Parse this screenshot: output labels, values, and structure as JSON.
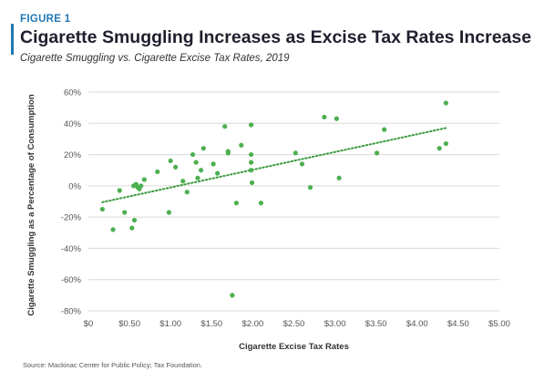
{
  "header": {
    "figure_label": "FIGURE 1",
    "title": "Cigarette Smuggling Increases as Excise Tax Rates Increase",
    "subtitle": "Cigarette Smuggling vs. Cigarette Excise Tax Rates, 2019"
  },
  "footer": {
    "source": "Source: Mackinac Center for Public Policy; Tax Foundation."
  },
  "colors": {
    "accent": "#1f78b4",
    "points": "#4caf50",
    "trendline": "#3d9a40",
    "grid": "#d9d9d9"
  },
  "chart_data": {
    "type": "scatter",
    "xlabel": "Cigarette Excise Tax Rates",
    "ylabel": "Cigarette Smuggling as a Percentage of Consumption",
    "xlim": [
      0,
      5
    ],
    "ylim": [
      -80,
      60
    ],
    "x_ticks": [
      0,
      0.5,
      1,
      1.5,
      2,
      2.5,
      3,
      3.5,
      4,
      4.5,
      5
    ],
    "x_tick_labels": [
      "$0",
      "$0.50",
      "$1.00",
      "$1.50",
      "$2.00",
      "$2.50",
      "$3.00",
      "$3.50",
      "$4.00",
      "$4.50",
      "$5.00"
    ],
    "y_ticks": [
      60,
      40,
      20,
      0,
      -20,
      -40,
      -60,
      -80
    ],
    "y_tick_labels": [
      "60%",
      "40%",
      "20%",
      "0%",
      "-20%",
      "-40%",
      "-60%",
      "-80%"
    ],
    "grid": "horizontal",
    "legend": "none",
    "trendline": {
      "style": "dotted",
      "x": [
        0.17,
        4.35
      ],
      "y": [
        -10.5,
        37
      ]
    },
    "points": [
      {
        "x": 0.17,
        "y": -15
      },
      {
        "x": 0.3,
        "y": -28
      },
      {
        "x": 0.38,
        "y": -3
      },
      {
        "x": 0.44,
        "y": -17
      },
      {
        "x": 0.53,
        "y": -27
      },
      {
        "x": 0.56,
        "y": -22
      },
      {
        "x": 0.55,
        "y": 0
      },
      {
        "x": 0.58,
        "y": 1
      },
      {
        "x": 0.6,
        "y": -1
      },
      {
        "x": 0.62,
        "y": -2
      },
      {
        "x": 0.64,
        "y": 0
      },
      {
        "x": 0.68,
        "y": 4
      },
      {
        "x": 0.84,
        "y": 9
      },
      {
        "x": 0.98,
        "y": -17
      },
      {
        "x": 1.0,
        "y": 16
      },
      {
        "x": 1.06,
        "y": 12
      },
      {
        "x": 1.15,
        "y": 3
      },
      {
        "x": 1.2,
        "y": -4
      },
      {
        "x": 1.27,
        "y": 20
      },
      {
        "x": 1.31,
        "y": 15
      },
      {
        "x": 1.33,
        "y": 5
      },
      {
        "x": 1.37,
        "y": 10
      },
      {
        "x": 1.4,
        "y": 24
      },
      {
        "x": 1.52,
        "y": 14
      },
      {
        "x": 1.57,
        "y": 8
      },
      {
        "x": 1.66,
        "y": 38
      },
      {
        "x": 1.7,
        "y": 22
      },
      {
        "x": 1.7,
        "y": 21
      },
      {
        "x": 1.75,
        "y": -70
      },
      {
        "x": 1.8,
        "y": -11
      },
      {
        "x": 1.86,
        "y": 26
      },
      {
        "x": 1.98,
        "y": 39
      },
      {
        "x": 1.98,
        "y": 20
      },
      {
        "x": 1.98,
        "y": 15
      },
      {
        "x": 1.98,
        "y": 10
      },
      {
        "x": 1.99,
        "y": 2
      },
      {
        "x": 2.1,
        "y": -11
      },
      {
        "x": 2.52,
        "y": 21
      },
      {
        "x": 2.6,
        "y": 14
      },
      {
        "x": 2.7,
        "y": -1
      },
      {
        "x": 2.87,
        "y": 44
      },
      {
        "x": 3.02,
        "y": 43
      },
      {
        "x": 3.05,
        "y": 5
      },
      {
        "x": 3.51,
        "y": 21
      },
      {
        "x": 3.6,
        "y": 36
      },
      {
        "x": 4.27,
        "y": 24
      },
      {
        "x": 4.35,
        "y": 53
      },
      {
        "x": 4.35,
        "y": 27
      }
    ]
  }
}
